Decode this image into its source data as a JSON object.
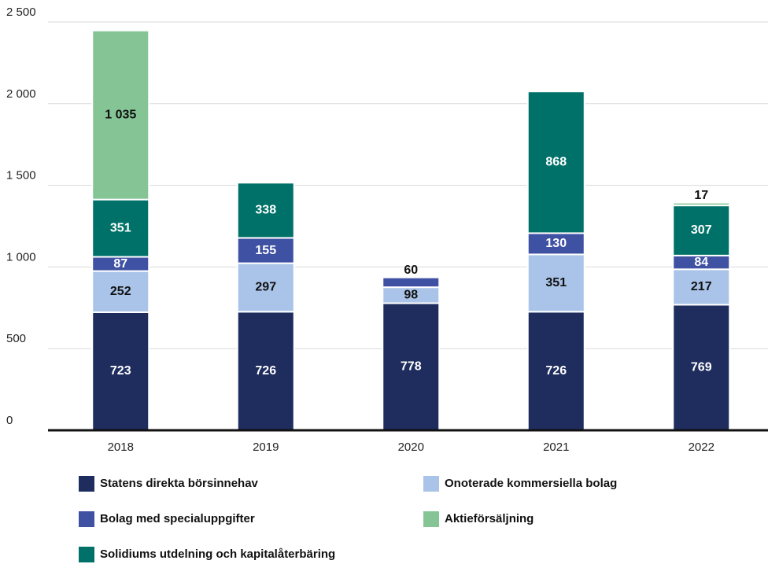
{
  "chart_data": {
    "type": "stacked_bar",
    "categories": [
      "2018",
      "2019",
      "2020",
      "2021",
      "2022"
    ],
    "series": [
      {
        "name": "Statens direkta börsinnehav",
        "color": "#1f2d5e",
        "values": [
          723,
          726,
          778,
          726,
          769
        ]
      },
      {
        "name": "Onoterade kommersiella bolag",
        "color": "#a9c4e8",
        "values": [
          252,
          297,
          98,
          351,
          217
        ]
      },
      {
        "name": "Bolag med specialuppgifter",
        "color": "#3f51a3",
        "values": [
          87,
          155,
          60,
          130,
          84
        ]
      },
      {
        "name": "Solidiums utdelning och kapitalåterbäring",
        "color": "#007169",
        "values": [
          351,
          338,
          null,
          868,
          307
        ]
      },
      {
        "name": "Aktieförsäljning",
        "color": "#85c595",
        "values": [
          1035,
          null,
          null,
          null,
          17
        ],
        "value_labels": [
          "1 035",
          null,
          null,
          null,
          "17"
        ]
      }
    ],
    "ylim": [
      0,
      2500
    ],
    "yticks": [
      0,
      500,
      {
        "value": 1000,
        "label": "1 000"
      },
      {
        "value": 1500,
        "label": "1 500"
      },
      {
        "value": 2000,
        "label": "2 000"
      },
      {
        "value": 2500,
        "label": "2 500"
      }
    ],
    "grid": true,
    "legend": "bottom"
  }
}
